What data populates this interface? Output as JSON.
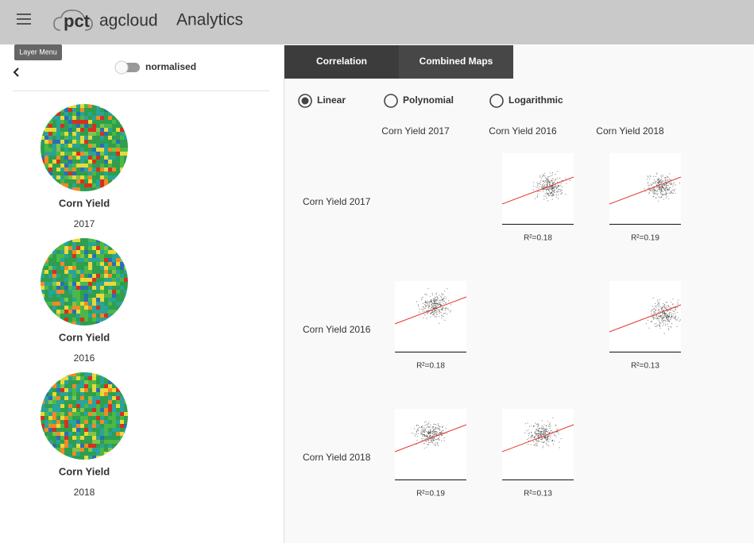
{
  "header": {
    "logo_mark": "pct",
    "logo_text": "agcloud",
    "title": "Analytics"
  },
  "tooltip": "Layer Menu",
  "toggle_label": "normalised",
  "layers": [
    {
      "name": "Corn Yield",
      "year": "2017"
    },
    {
      "name": "Corn Yield",
      "year": "2016"
    },
    {
      "name": "Corn Yield",
      "year": "2018"
    }
  ],
  "tabs": [
    "Correlation",
    "Combined Maps"
  ],
  "fit_options": [
    "Linear",
    "Polynomial",
    "Logarithmic"
  ],
  "matrix": {
    "columns": [
      "Corn Yield 2017",
      "Corn Yield 2016",
      "Corn Yield 2018"
    ],
    "rows": [
      {
        "label": "Corn Yield 2017",
        "cells": [
          null,
          "R²=0.18",
          "R²=0.19"
        ]
      },
      {
        "label": "Corn Yield 2016",
        "cells": [
          "R²=0.18",
          null,
          "R²=0.13"
        ]
      },
      {
        "label": "Corn Yield 2018",
        "cells": [
          "R²=0.19",
          "R²=0.13",
          null
        ]
      }
    ]
  }
}
